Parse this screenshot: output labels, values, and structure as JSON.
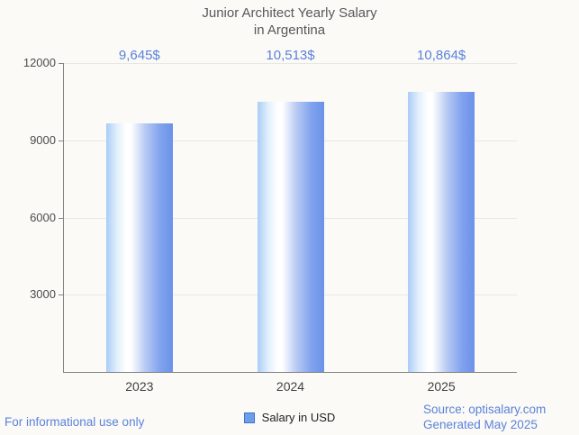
{
  "title": {
    "line1": "Junior Architect Yearly Salary",
    "line2": "in Argentina"
  },
  "chart_data": {
    "type": "bar",
    "title": "Junior Architect Yearly Salary in Argentina",
    "categories": [
      "2023",
      "2024",
      "2025"
    ],
    "series": [
      {
        "name": "Salary in USD",
        "values": [
          9645,
          10513,
          10864
        ]
      }
    ],
    "value_labels": [
      "9,645$",
      "10,513$",
      "10,864$"
    ],
    "xlabel": "",
    "ylabel": "",
    "ylim": [
      0,
      12000
    ],
    "yticks": [
      3000,
      6000,
      9000,
      12000
    ],
    "grid": true,
    "legend_position": "bottom"
  },
  "legend": {
    "label": "Salary in USD"
  },
  "footer": {
    "left_note": "For informational use only",
    "source": "Source: optisalary.com",
    "generated": "Generated May 2025"
  },
  "colors": {
    "background": "#fbfaf7",
    "title_text": "#58585a",
    "axis_line": "#848484",
    "gridline": "#e7e7e3",
    "y_label_text": "#4c4c4c",
    "x_label_text": "#3f3f3f",
    "accent_blue": "#5b82da",
    "bar_light": "#a9cdf6",
    "bar_highlight": "#ffffff",
    "bar_dark": "#6b92e9",
    "legend_fill": "#6d9eeb",
    "legend_border": "#3f72cf",
    "legend_text": "#1f1f1f"
  }
}
